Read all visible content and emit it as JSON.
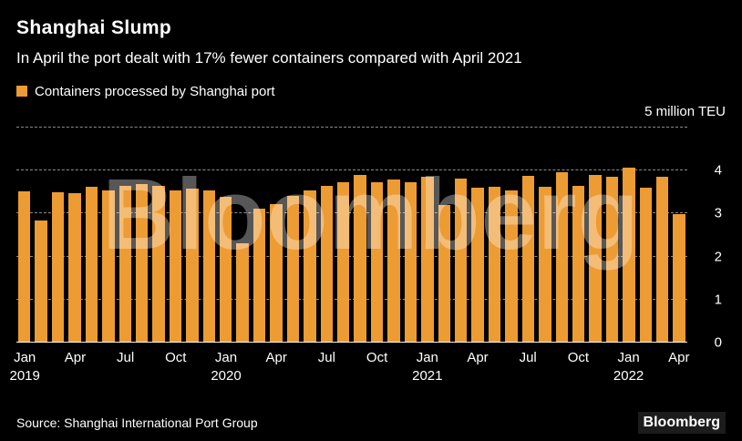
{
  "header": {
    "title": "Shanghai Slump",
    "subtitle": "In April the port dealt with 17% fewer containers compared with April 2021",
    "legend_label": "Containers processed by Shanghai port"
  },
  "chart_data": {
    "type": "bar",
    "title": "Containers processed by Shanghai port",
    "unit_label": "5 million TEU",
    "ylabel": "million TEU",
    "ylim": [
      0,
      5
    ],
    "yticks": [
      0,
      1,
      2,
      3,
      4
    ],
    "grid": true,
    "bar_color": "#ED9B33",
    "categories": [
      "Jan 2019",
      "Feb 2019",
      "Mar 2019",
      "Apr 2019",
      "May 2019",
      "Jun 2019",
      "Jul 2019",
      "Aug 2019",
      "Sep 2019",
      "Oct 2019",
      "Nov 2019",
      "Dec 2019",
      "Jan 2020",
      "Feb 2020",
      "Mar 2020",
      "Apr 2020",
      "May 2020",
      "Jun 2020",
      "Jul 2020",
      "Aug 2020",
      "Sep 2020",
      "Oct 2020",
      "Nov 2020",
      "Dec 2020",
      "Jan 2021",
      "Feb 2021",
      "Mar 2021",
      "Apr 2021",
      "May 2021",
      "Jun 2021",
      "Jul 2021",
      "Aug 2021",
      "Sep 2021",
      "Oct 2021",
      "Nov 2021",
      "Dec 2021",
      "Jan 2022",
      "Feb 2022",
      "Mar 2022",
      "Apr 2022"
    ],
    "values": [
      3.51,
      2.84,
      3.49,
      3.47,
      3.62,
      3.53,
      3.64,
      3.68,
      3.64,
      3.54,
      3.58,
      3.53,
      3.38,
      2.32,
      3.12,
      3.22,
      3.42,
      3.53,
      3.64,
      3.72,
      3.9,
      3.72,
      3.8,
      3.72,
      3.86,
      3.2,
      3.82,
      3.61,
      3.63,
      3.53,
      3.88,
      3.62,
      3.96,
      3.64,
      3.9,
      3.86,
      4.06,
      3.6,
      3.86,
      2.99
    ],
    "xticks": [
      {
        "index": 0,
        "label": "Jan",
        "year": "2019"
      },
      {
        "index": 3,
        "label": "Apr"
      },
      {
        "index": 6,
        "label": "Jul"
      },
      {
        "index": 9,
        "label": "Oct"
      },
      {
        "index": 12,
        "label": "Jan",
        "year": "2020"
      },
      {
        "index": 15,
        "label": "Apr"
      },
      {
        "index": 18,
        "label": "Jul"
      },
      {
        "index": 21,
        "label": "Oct"
      },
      {
        "index": 24,
        "label": "Jan",
        "year": "2021"
      },
      {
        "index": 27,
        "label": "Apr"
      },
      {
        "index": 30,
        "label": "Jul"
      },
      {
        "index": 33,
        "label": "Oct"
      },
      {
        "index": 36,
        "label": "Jan",
        "year": "2022"
      },
      {
        "index": 39,
        "label": "Apr"
      }
    ]
  },
  "colors": {
    "background": "#000000",
    "bar": "#ED9B33",
    "gridline": "rgba(255,255,255,0.55)",
    "text": "#FFFFFF"
  },
  "watermark": "Bloomberg",
  "footer": {
    "source": "Source: Shanghai International Port Group",
    "logo": "Bloomberg"
  }
}
